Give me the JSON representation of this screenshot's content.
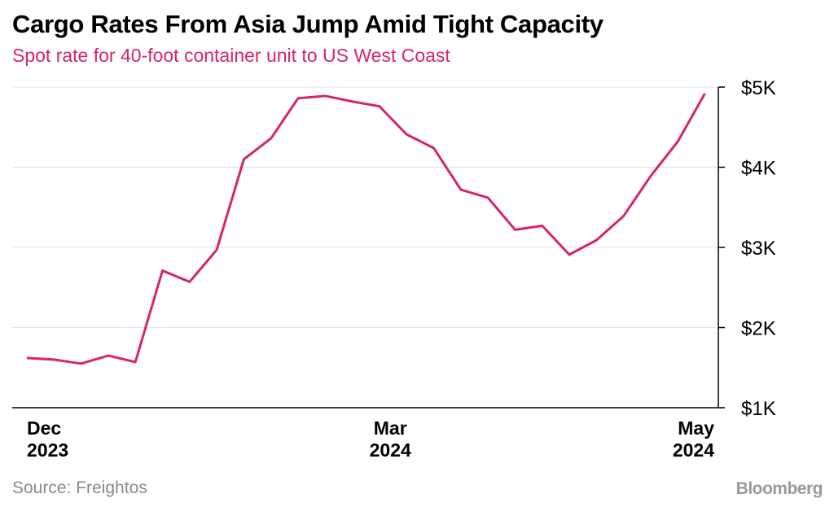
{
  "chart_data": {
    "type": "line",
    "title": "Cargo Rates From Asia Jump Amid Tight Capacity",
    "subtitle": "Spot rate for 40-foot container unit to US West Coast",
    "source": "Source: Freightos",
    "brand": "Bloomberg",
    "xlabel": "",
    "ylabel": "",
    "ylim": [
      1000,
      5000
    ],
    "y_ticks": [
      {
        "value": 5000,
        "label": "$5K"
      },
      {
        "value": 4000,
        "label": "$4K"
      },
      {
        "value": 3000,
        "label": "$3K"
      },
      {
        "value": 2000,
        "label": "$2K"
      },
      {
        "value": 1000,
        "label": "$1K"
      }
    ],
    "x_ticks": [
      {
        "index": 0,
        "line1": "Dec",
        "line2": "2023",
        "anchor": "start"
      },
      {
        "index": 13.4,
        "line1": "Mar",
        "line2": "2024",
        "anchor": "middle"
      },
      {
        "index": 25.3,
        "line1": "May",
        "line2": "2024",
        "anchor": "end"
      }
    ],
    "grid": true,
    "line_color": "#d6246e",
    "series": [
      {
        "name": "Spot rate (USD per 40-ft container)",
        "values": [
          1620,
          1600,
          1550,
          1650,
          1570,
          2710,
          2570,
          2970,
          4100,
          4360,
          4860,
          4890,
          4820,
          4760,
          4410,
          4240,
          3720,
          3620,
          3220,
          3270,
          2910,
          3090,
          3390,
          3890,
          4320,
          4920
        ]
      }
    ]
  }
}
